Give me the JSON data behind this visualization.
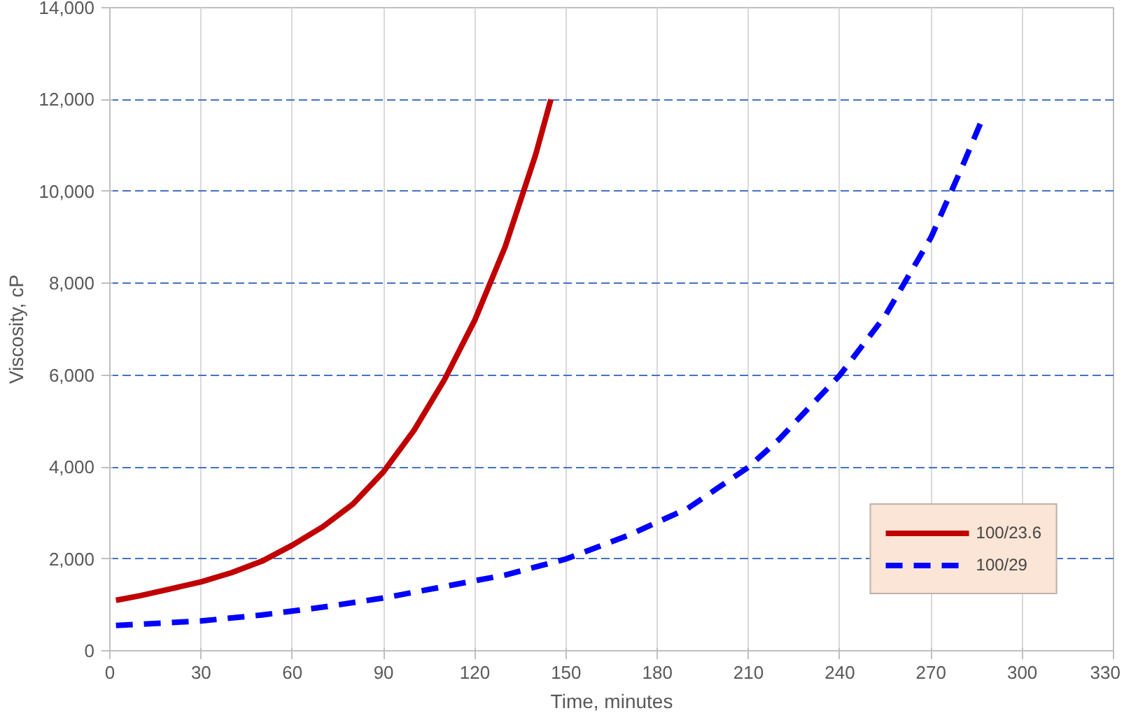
{
  "chart_data": {
    "type": "line",
    "xlabel": "Time, minutes",
    "ylabel": "Viscosity, cP",
    "xlim": [
      0,
      330
    ],
    "xticks": [
      0,
      30,
      60,
      90,
      120,
      150,
      180,
      210,
      240,
      270,
      300,
      330
    ],
    "ylim": [
      0,
      14000
    ],
    "yticks": [
      0,
      {
        "value": 2000,
        "label": "2,000"
      },
      {
        "value": 4000,
        "label": "4,000"
      },
      {
        "value": 6000,
        "label": "6,000"
      },
      {
        "value": 8000,
        "label": "8,000"
      },
      {
        "value": 10000,
        "label": "10,000"
      },
      {
        "value": 12000,
        "label": "12,000"
      },
      {
        "value": 14000,
        "label": "14,000"
      }
    ],
    "grid": true,
    "legend": "bottom right",
    "marker": "none",
    "series": [
      {
        "name": "100/23.6",
        "color": "#c00000",
        "line_style": "solid",
        "x": [
          2,
          10,
          20,
          30,
          40,
          50,
          60,
          70,
          80,
          90,
          100,
          110,
          120,
          130,
          135,
          140,
          145
        ],
        "values": [
          1100,
          1200,
          1350,
          1500,
          1700,
          1950,
          2300,
          2700,
          3200,
          3900,
          4800,
          5900,
          7200,
          8800,
          9800,
          10800,
          12000
        ]
      },
      {
        "name": "100/29",
        "color": "#0000ff",
        "line_style": "dashed",
        "x": [
          2,
          30,
          50,
          70,
          90,
          110,
          130,
          150,
          170,
          190,
          210,
          220,
          240,
          255,
          270,
          280,
          287
        ],
        "values": [
          550,
          650,
          780,
          950,
          1150,
          1400,
          1650,
          2000,
          2500,
          3100,
          4000,
          4600,
          6000,
          7300,
          9000,
          10500,
          11600
        ]
      }
    ]
  }
}
